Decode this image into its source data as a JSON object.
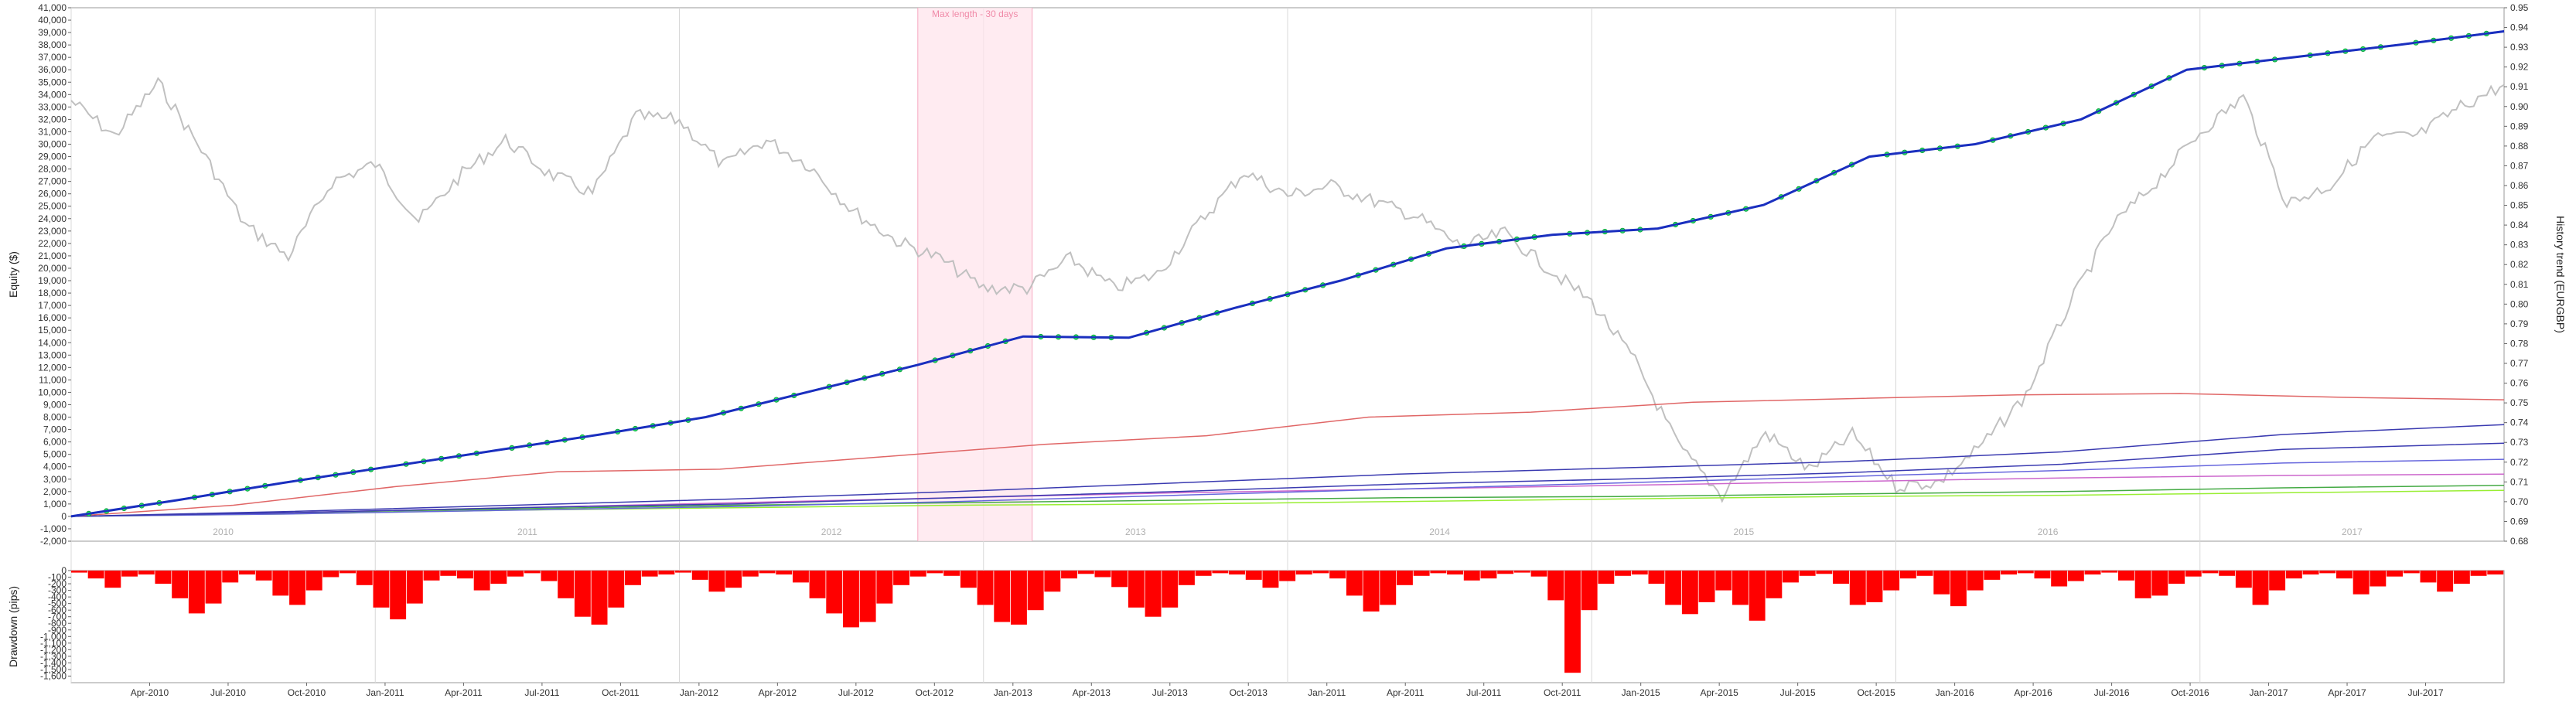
{
  "chart_data": [
    {
      "type": "line",
      "ylabel": "Equity ($)",
      "y2label": "History trend (EURGBP)",
      "ylim": [
        -2000,
        41000
      ],
      "y2lim": [
        0.68,
        0.95
      ],
      "y_ticks": [
        "-2,000",
        "-1,000",
        "0",
        "1,000",
        "2,000",
        "3,000",
        "4,000",
        "5,000",
        "6,000",
        "7,000",
        "8,000",
        "9,000",
        "10,000",
        "11,000",
        "12,000",
        "13,000",
        "14,000",
        "15,000",
        "16,000",
        "17,000",
        "18,000",
        "19,000",
        "20,000",
        "21,000",
        "22,000",
        "23,000",
        "24,000",
        "25,000",
        "26,000",
        "27,000",
        "28,000",
        "29,000",
        "30,000",
        "31,000",
        "32,000",
        "33,000",
        "34,000",
        "35,000",
        "36,000",
        "37,000",
        "38,000",
        "39,000",
        "40,000",
        "41,000"
      ],
      "y2_ticks": [
        "0.68",
        "0.69",
        "0.70",
        "0.71",
        "0.72",
        "0.73",
        "0.74",
        "0.75",
        "0.76",
        "0.77",
        "0.78",
        "0.79",
        "0.80",
        "0.81",
        "0.82",
        "0.83",
        "0.84",
        "0.85",
        "0.86",
        "0.87",
        "0.88",
        "0.89",
        "0.90",
        "0.91",
        "0.92",
        "0.93",
        "0.94",
        "0.95"
      ],
      "year_labels": [
        "2010",
        "2011",
        "2012",
        "2013",
        "2014",
        "2015",
        "2016",
        "2017"
      ],
      "grid": true,
      "annotations": [
        {
          "text": "Max length - 30 days",
          "x_range": [
            0.348,
            0.395
          ]
        }
      ],
      "series": [
        {
          "values": [
            0,
            1300,
            2700,
            4000,
            5300,
            6600,
            8000,
            10100,
            12200,
            14500,
            14400,
            16800,
            19000,
            21600,
            22700,
            23200,
            25100,
            29000,
            30000,
            32000,
            36000,
            37000,
            38000,
            39100
          ],
          "color": "#1a2fbf"
        },
        {
          "values": [
            0,
            900,
            2400,
            3600,
            3800,
            4800,
            5800,
            6500,
            8000,
            8400,
            9200,
            9500,
            9800,
            9900,
            9600,
            9400
          ],
          "color": "#e06666"
        },
        {
          "values": [
            0,
            400,
            900,
            1400,
            2000,
            2700,
            3400,
            3900,
            4400,
            5200,
            6600,
            7400
          ],
          "color": "#3a3ab0"
        },
        {
          "values": [
            0,
            300,
            700,
            1000,
            1500,
            2000,
            2600,
            3000,
            3500,
            4200,
            5400,
            5900
          ],
          "color": "#3a3ab0"
        },
        {
          "values": [
            0,
            200,
            500,
            800,
            1200,
            1700,
            2200,
            2700,
            3200,
            3700,
            4300,
            4600
          ],
          "color": "#6666dd"
        },
        {
          "values": [
            0,
            300,
            700,
            1100,
            1500,
            1900,
            2200,
            2500,
            2800,
            3100,
            3300,
            3400
          ],
          "color": "#cc66cc"
        },
        {
          "values": [
            0,
            300,
            600,
            900,
            1100,
            1300,
            1500,
            1600,
            1800,
            2000,
            2300,
            2500
          ],
          "color": "#44aa44"
        },
        {
          "values": [
            0,
            200,
            500,
            700,
            900,
            1000,
            1200,
            1400,
            1600,
            1700,
            1900,
            2100
          ],
          "color": "#99ee33"
        }
      ],
      "trend": {
        "name": "EURGBP",
        "color": "#c0c0c0",
        "values": [
          0.903,
          0.885,
          0.912,
          0.878,
          0.84,
          0.824,
          0.862,
          0.871,
          0.842,
          0.866,
          0.883,
          0.866,
          0.856,
          0.895,
          0.893,
          0.87,
          0.883,
          0.87,
          0.847,
          0.832,
          0.823,
          0.808,
          0.808,
          0.823,
          0.808,
          0.815,
          0.842,
          0.867,
          0.855,
          0.86,
          0.852,
          0.844,
          0.829,
          0.836,
          0.818,
          0.801,
          0.771,
          0.728,
          0.703,
          0.735,
          0.716,
          0.734,
          0.708,
          0.71,
          0.729,
          0.754,
          0.8,
          0.84,
          0.862,
          0.887,
          0.905,
          0.851,
          0.86,
          0.884,
          0.885,
          0.9,
          0.911
        ]
      }
    },
    {
      "type": "bar",
      "ylabel": "Drawdown (pips)",
      "ylim": [
        -1700,
        0
      ],
      "y_ticks": [
        "0",
        "-100",
        "-200",
        "-300",
        "-400",
        "-500",
        "-600",
        "-700",
        "-800",
        "-900",
        "-1,000",
        "-1,100",
        "-1,200",
        "-1,300",
        "-1,400",
        "-1,500",
        "-1,600"
      ],
      "x_labels": [
        "Apr-2010",
        "Jul-2010",
        "Oct-2010",
        "Jan-2011",
        "Apr-2011",
        "Jul-2011",
        "Oct-2011",
        "Jan-2012",
        "Apr-2012",
        "Jul-2012",
        "Oct-2012",
        "Jan-2013",
        "Apr-2013",
        "Jul-2013",
        "Oct-2013",
        "Jan-2011",
        "Apr-2011",
        "Jul-2011",
        "Oct-2011",
        "Jan-2015",
        "Apr-2015",
        "Jul-2015",
        "Oct-2015",
        "Jan-2016",
        "Apr-2016",
        "Jul-2016",
        "Oct-2016",
        "Jan-2017",
        "Apr-2017",
        "Jul-2017"
      ],
      "color": "#ff0000",
      "values": [
        -30,
        -120,
        -260,
        -90,
        -60,
        -200,
        -420,
        -650,
        -500,
        -180,
        -60,
        -150,
        -380,
        -520,
        -300,
        -100,
        -40,
        -220,
        -560,
        -740,
        -500,
        -150,
        -80,
        -120,
        -300,
        -200,
        -90,
        -40,
        -160,
        -420,
        -700,
        -820,
        -560,
        -220,
        -90,
        -60,
        -30,
        -140,
        -320,
        -260,
        -90,
        -40,
        -60,
        -180,
        -420,
        -650,
        -860,
        -780,
        -500,
        -220,
        -90,
        -40,
        -80,
        -260,
        -520,
        -780,
        -820,
        -600,
        -320,
        -120,
        -50,
        -100,
        -250,
        -560,
        -700,
        -560,
        -220,
        -80,
        -40,
        -60,
        -140,
        -260,
        -160,
        -60,
        -40,
        -120,
        -380,
        -620,
        -520,
        -220,
        -80,
        -40,
        -60,
        -150,
        -120,
        -50,
        -30,
        -90,
        -450,
        -1550,
        -600,
        -200,
        -80,
        -60,
        -200,
        -520,
        -660,
        -480,
        -300,
        -520,
        -760,
        -420,
        -180,
        -80,
        -50,
        -200,
        -520,
        -480,
        -300,
        -120,
        -80,
        -360,
        -540,
        -300,
        -140,
        -60,
        -40,
        -120,
        -240,
        -160,
        -60,
        -30,
        -150,
        -420,
        -380,
        -200,
        -90,
        -40,
        -80,
        -260,
        -520,
        -300,
        -120,
        -60,
        -40,
        -120,
        -360,
        -240,
        -90,
        -40,
        -180,
        -320,
        -200,
        -80,
        -60
      ]
    }
  ]
}
